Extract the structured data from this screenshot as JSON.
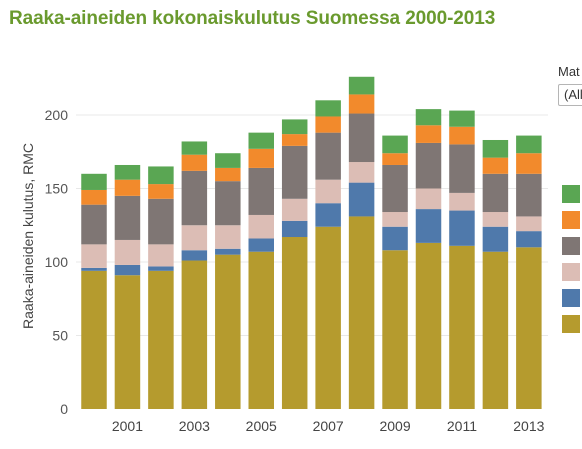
{
  "title": "Raaka-aineiden kokonaiskulutus Suomessa 2000-2013",
  "filter": {
    "label": "Mat",
    "selected": "(All"
  },
  "colors": {
    "s1": "#b59b2e",
    "s2": "#4f79ab",
    "s3": "#dcbdb5",
    "s4": "#7f7674",
    "s5": "#f28a2c",
    "s6": "#5aa653"
  },
  "chart_data": {
    "type": "bar",
    "stacked": true,
    "categories": [
      "2000",
      "2001",
      "2002",
      "2003",
      "2004",
      "2005",
      "2006",
      "2007",
      "2008",
      "2009",
      "2010",
      "2011",
      "2012",
      "2013"
    ],
    "x_tick_labels": [
      "2001",
      "2003",
      "2005",
      "2007",
      "2009",
      "2011",
      "2013"
    ],
    "ylabel": "Raaka-aineiden kulutus, RMC",
    "ylim": [
      0,
      225
    ],
    "yticks": [
      0,
      50,
      100,
      150,
      200
    ],
    "grid": true,
    "legend": "right",
    "series": [
      {
        "values": [
          94,
          91,
          94,
          101,
          105,
          107,
          117,
          124,
          131,
          108,
          113,
          111,
          107,
          110
        ]
      },
      {
        "values": [
          2,
          7,
          3,
          7,
          4,
          9,
          11,
          16,
          23,
          16,
          23,
          24,
          17,
          11
        ]
      },
      {
        "values": [
          16,
          17,
          15,
          17,
          16,
          16,
          15,
          16,
          14,
          10,
          14,
          12,
          10,
          10
        ]
      },
      {
        "values": [
          27,
          30,
          31,
          37,
          30,
          32,
          36,
          32,
          33,
          32,
          31,
          33,
          26,
          29
        ]
      },
      {
        "values": [
          10,
          11,
          10,
          11,
          9,
          13,
          8,
          11,
          13,
          8,
          12,
          12,
          11,
          14
        ]
      },
      {
        "values": [
          11,
          10,
          12,
          9,
          10,
          11,
          10,
          11,
          12,
          12,
          11,
          11,
          12,
          12
        ]
      }
    ]
  }
}
